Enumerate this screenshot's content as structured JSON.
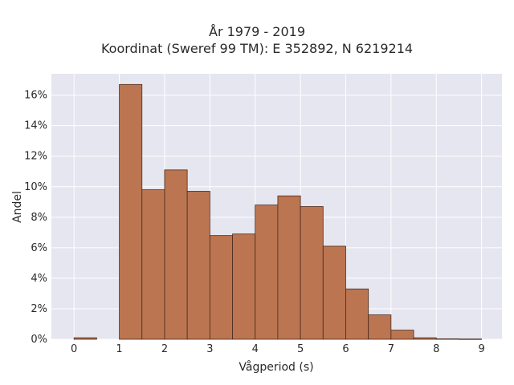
{
  "chart_data": {
    "type": "bar",
    "title": "År 1979 - 2019",
    "subtitle": "Koordinat (Sweref 99 TM): E 352892, N 6219214",
    "xlabel": "Vågperiod (s)",
    "ylabel": "Andel",
    "xlim": [
      -0.5,
      9.45
    ],
    "ylim": [
      0,
      0.174
    ],
    "x_ticks": [
      0,
      1,
      2,
      3,
      4,
      5,
      6,
      7,
      8,
      9
    ],
    "y_ticks": [
      0,
      0.02,
      0.04,
      0.06,
      0.08,
      0.1,
      0.12,
      0.14,
      0.16
    ],
    "y_tick_labels": [
      "0%",
      "2%",
      "4%",
      "6%",
      "8%",
      "10%",
      "12%",
      "14%",
      "16%"
    ],
    "grid": true,
    "bin_width": 0.5,
    "bins": [
      {
        "x0": 0.0,
        "x1": 0.5,
        "value": 0.001
      },
      {
        "x0": 0.5,
        "x1": 1.0,
        "value": 0.0
      },
      {
        "x0": 1.0,
        "x1": 1.5,
        "value": 0.167
      },
      {
        "x0": 1.5,
        "x1": 2.0,
        "value": 0.098
      },
      {
        "x0": 2.0,
        "x1": 2.5,
        "value": 0.111
      },
      {
        "x0": 2.5,
        "x1": 3.0,
        "value": 0.097
      },
      {
        "x0": 3.0,
        "x1": 3.5,
        "value": 0.068
      },
      {
        "x0": 3.5,
        "x1": 4.0,
        "value": 0.069
      },
      {
        "x0": 4.0,
        "x1": 4.5,
        "value": 0.088
      },
      {
        "x0": 4.5,
        "x1": 5.0,
        "value": 0.094
      },
      {
        "x0": 5.0,
        "x1": 5.5,
        "value": 0.087
      },
      {
        "x0": 5.5,
        "x1": 6.0,
        "value": 0.061
      },
      {
        "x0": 6.0,
        "x1": 6.5,
        "value": 0.033
      },
      {
        "x0": 6.5,
        "x1": 7.0,
        "value": 0.016
      },
      {
        "x0": 7.0,
        "x1": 7.5,
        "value": 0.006
      },
      {
        "x0": 7.5,
        "x1": 8.0,
        "value": 0.001
      },
      {
        "x0": 8.0,
        "x1": 8.5,
        "value": 0.0003
      },
      {
        "x0": 8.5,
        "x1": 9.0,
        "value": 0.0002
      }
    ],
    "colors": {
      "bar_fill": "#bb7551",
      "bar_edge": "#4a2c1e",
      "plot_background": "#e5e6ef",
      "grid": "#ffffff"
    }
  }
}
